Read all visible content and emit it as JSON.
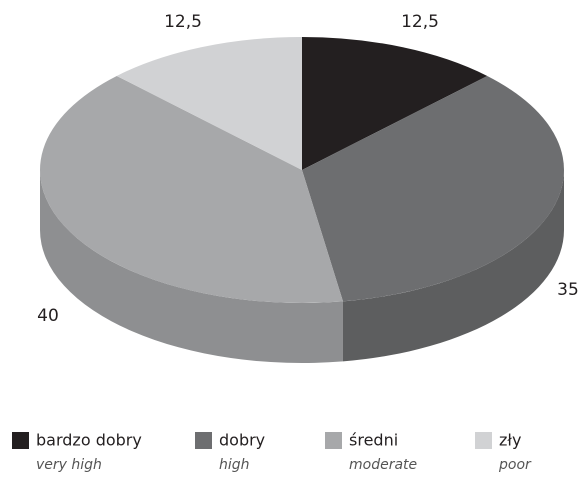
{
  "chart_data": {
    "type": "pie",
    "categories": [
      "bardzo dobry",
      "dobry",
      "średni",
      "zły"
    ],
    "translations": [
      "very high",
      "high",
      "moderate",
      "poor"
    ],
    "values": [
      12.5,
      35,
      40,
      12.5
    ],
    "value_labels": [
      "12,5",
      "35",
      "40",
      "12,5"
    ],
    "colors": [
      "#231f20",
      "#6d6e70",
      "#a7a8aa",
      "#d1d2d4"
    ],
    "legend": "bottom"
  }
}
